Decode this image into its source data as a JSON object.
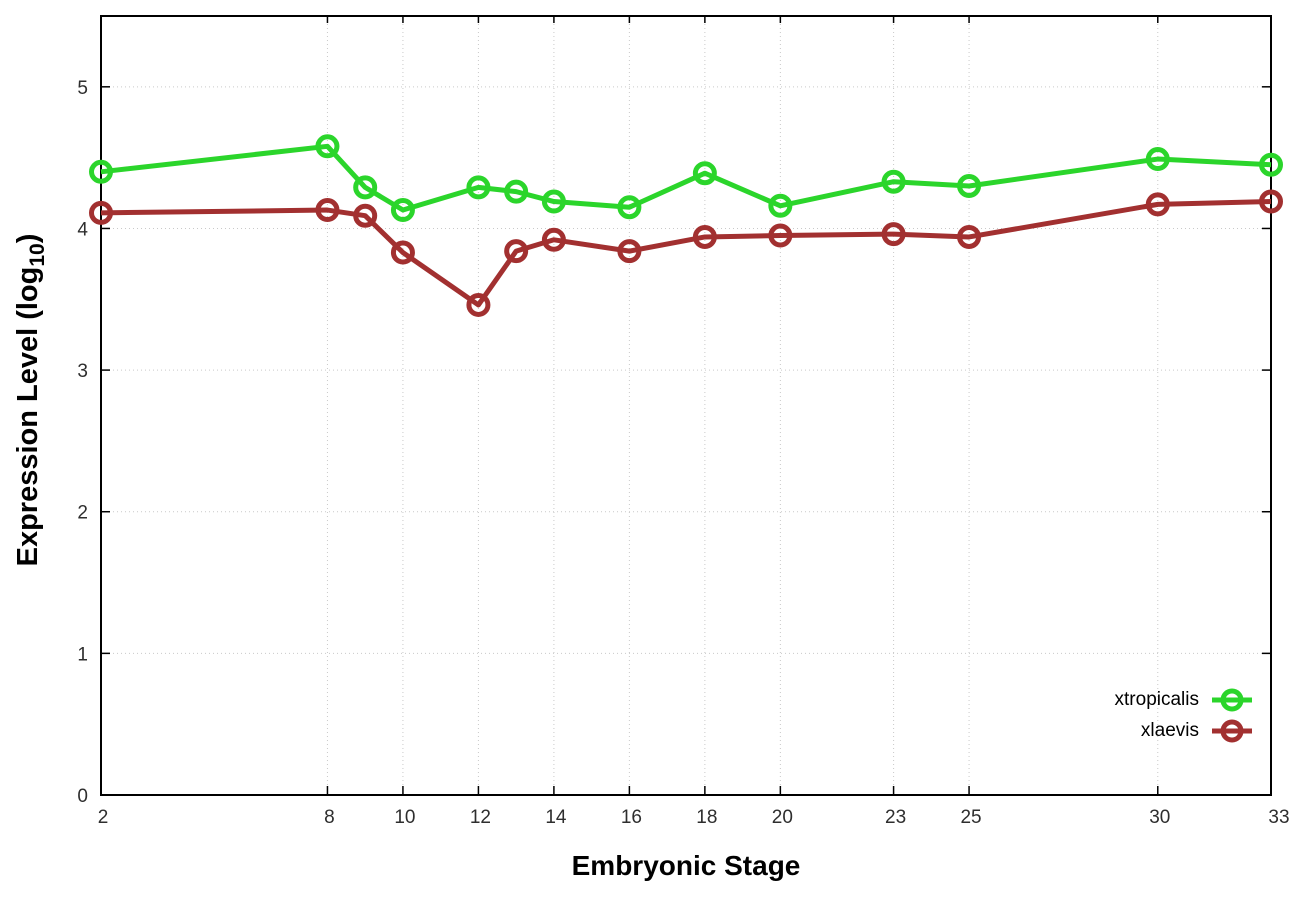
{
  "figure": {
    "background": "#ffffff",
    "border_color": "#000000"
  },
  "chart_data": {
    "type": "line",
    "title": "",
    "xlabel": "Embryonic Stage",
    "ylabel": "Expression Level (log10)",
    "ylabel_parts": {
      "main": "Expression Level (log",
      "sub": "10",
      "suffix": ")"
    },
    "x": [
      2,
      8,
      9,
      10,
      12,
      13,
      14,
      16,
      18,
      20,
      23,
      25,
      30,
      33
    ],
    "xticks": [
      2,
      8,
      10,
      12,
      14,
      16,
      18,
      20,
      23,
      25,
      30,
      33
    ],
    "yticks": [
      0,
      1,
      2,
      3,
      4,
      5
    ],
    "xlim": [
      2,
      33
    ],
    "ylim": [
      0,
      5.5
    ],
    "grid": true,
    "grid_color": "#c9c9c9",
    "axis_color": "#000000",
    "tick_label_color": "#2e2e2e",
    "marker": "open-circle",
    "legend_position": "bottom-right-inside",
    "series": [
      {
        "name": "xtropicalis",
        "color": "#2BD52B",
        "values": [
          4.4,
          4.58,
          4.29,
          4.13,
          4.29,
          4.26,
          4.19,
          4.15,
          4.39,
          4.16,
          4.33,
          4.3,
          4.49,
          4.45
        ]
      },
      {
        "name": "xlaevis",
        "color": "#A23030",
        "values": [
          4.11,
          4.13,
          4.09,
          3.83,
          3.46,
          3.84,
          3.92,
          3.84,
          3.94,
          3.95,
          3.96,
          3.94,
          4.17,
          4.19
        ]
      }
    ]
  }
}
